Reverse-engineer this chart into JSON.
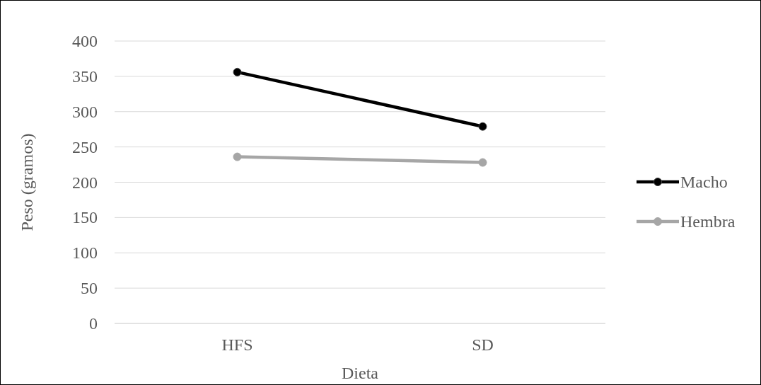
{
  "chart_data": {
    "type": "line",
    "xlabel": "Dieta",
    "ylabel": "Peso (gramos)",
    "categories": [
      "HFS",
      "SD"
    ],
    "series": [
      {
        "name": "Macho",
        "color": "#000000",
        "values": [
          356,
          279
        ]
      },
      {
        "name": "Hembra",
        "color": "#a6a6a6",
        "values": [
          236,
          228
        ]
      }
    ],
    "ylim": [
      0,
      400
    ],
    "yticks": [
      0,
      50,
      100,
      150,
      200,
      250,
      300,
      350,
      400
    ],
    "grid": "y",
    "legend": "right",
    "marker": "circle",
    "line_style": "solid"
  }
}
